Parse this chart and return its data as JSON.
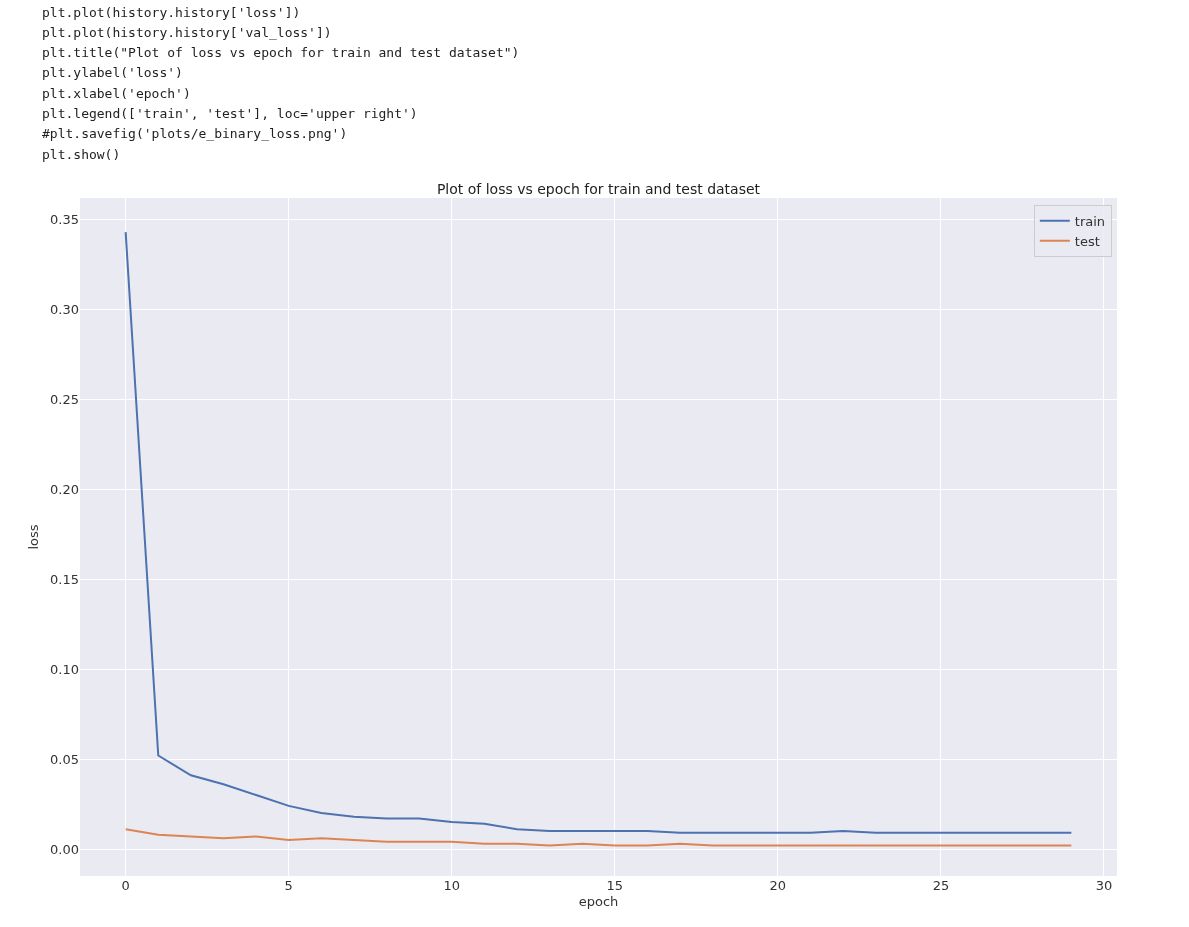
{
  "chart_data": {
    "type": "line",
    "title": "Plot of loss vs epoch for train and test dataset",
    "xlabel": "epoch",
    "ylabel": "loss",
    "x": [
      0,
      1,
      2,
      3,
      4,
      5,
      6,
      7,
      8,
      9,
      10,
      11,
      12,
      13,
      14,
      15,
      16,
      17,
      18,
      19,
      20,
      21,
      22,
      23,
      24,
      25,
      26,
      27,
      28,
      29
    ],
    "series": [
      {
        "name": "train",
        "color": "#4c72b0",
        "values": [
          0.343,
          0.052,
          0.041,
          0.036,
          0.03,
          0.024,
          0.02,
          0.018,
          0.017,
          0.017,
          0.015,
          0.014,
          0.011,
          0.01,
          0.01,
          0.01,
          0.01,
          0.009,
          0.009,
          0.009,
          0.009,
          0.009,
          0.01,
          0.009,
          0.009,
          0.009,
          0.009,
          0.009,
          0.009,
          0.009
        ]
      },
      {
        "name": "test",
        "color": "#dd8452",
        "values": [
          0.011,
          0.008,
          0.007,
          0.006,
          0.007,
          0.005,
          0.006,
          0.005,
          0.004,
          0.004,
          0.004,
          0.003,
          0.003,
          0.002,
          0.003,
          0.002,
          0.002,
          0.003,
          0.002,
          0.002,
          0.002,
          0.002,
          0.002,
          0.002,
          0.002,
          0.002,
          0.002,
          0.002,
          0.002,
          0.002
        ]
      }
    ],
    "xlim": [
      -1.4,
      30.4
    ],
    "xticks": [
      0,
      5,
      10,
      15,
      20,
      25,
      30
    ],
    "ylim": [
      -0.015,
      0.362
    ],
    "yticks": [
      {
        "value": 0,
        "label": "0.00"
      },
      {
        "value": 0.05,
        "label": "0.05"
      },
      {
        "value": 0.1,
        "label": "0.10"
      },
      {
        "value": 0.15,
        "label": "0.15"
      },
      {
        "value": 0.2,
        "label": "0.20"
      },
      {
        "value": 0.25,
        "label": "0.25"
      },
      {
        "value": 0.3,
        "label": "0.30"
      },
      {
        "value": 0.35,
        "label": "0.35"
      }
    ],
    "grid": true,
    "legend": "top right",
    "line_style": "solid",
    "marker": "none",
    "annotations": [
      "plt.plot(history.history['loss'])",
      "plt.plot(history.history['val_loss'])",
      "plt.title(\"Plot of loss vs epoch for train and test dataset\")",
      "plt.ylabel('loss')",
      "plt.xlabel('epoch')",
      "plt.legend(['train', 'test'], loc='upper right')",
      "#plt.savefig('plots/e_binary_loss.png')",
      "plt.show()"
    ]
  }
}
